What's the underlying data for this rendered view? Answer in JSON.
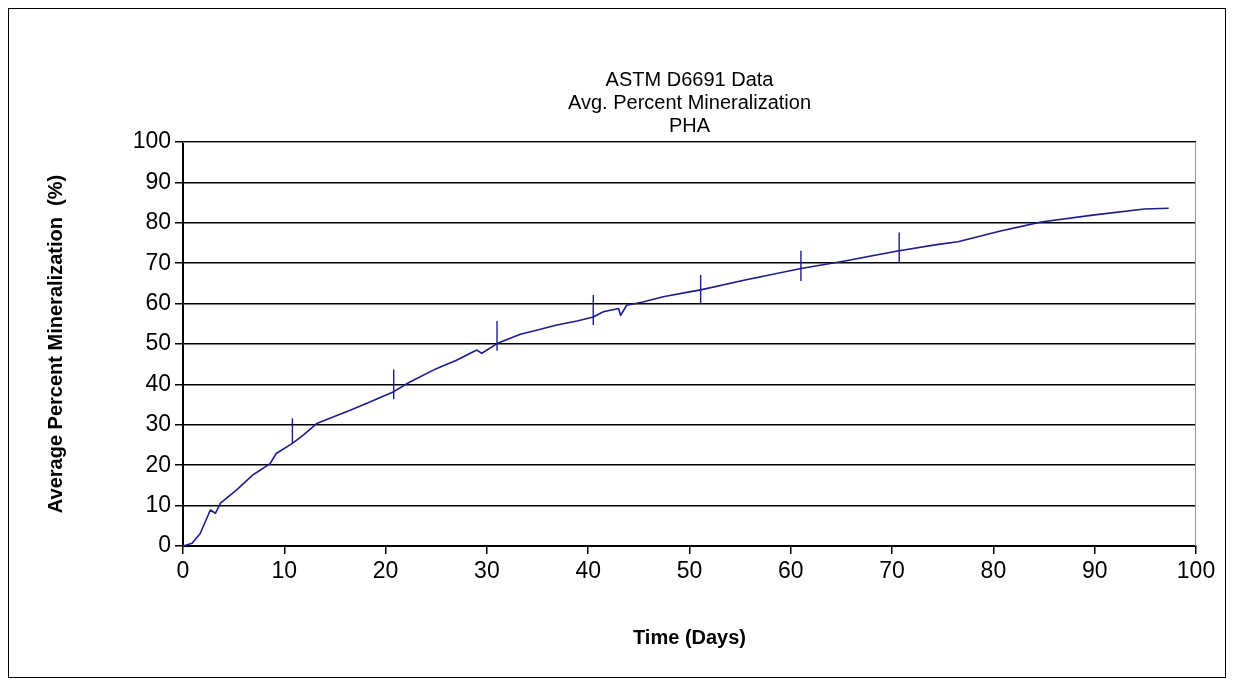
{
  "chart_data": {
    "type": "line",
    "title": "ASTM D6691 Data\nAvg. Percent Mineralization\nPHA",
    "xlabel": "Time (Days)",
    "ylabel": "Average Percent Mineralization  (%)",
    "xlim": [
      0,
      100
    ],
    "xticks": [
      0,
      10,
      20,
      30,
      40,
      50,
      60,
      70,
      80,
      90,
      100
    ],
    "ylim": [
      0,
      100
    ],
    "yticks": [
      0,
      10,
      20,
      30,
      40,
      50,
      60,
      70,
      80,
      90,
      100
    ],
    "grid": "y",
    "legend": false,
    "marker": "none",
    "line_style": "solid",
    "series": [
      {
        "color": "#1c1c8c",
        "x": [
          0,
          0.9,
          1.7,
          2.7,
          3.2,
          3.7,
          5.3,
          6.9,
          8.6,
          9.2,
          10.8,
          11.9,
          13.2,
          14.5,
          16.5,
          18.5,
          20.8,
          22.4,
          25.0,
          27.0,
          29.0,
          29.5,
          31.0,
          33.3,
          34.9,
          36.9,
          38.9,
          40.5,
          41.5,
          43.0,
          43.2,
          43.8,
          45.4,
          47.4,
          50.0,
          51.1,
          55.6,
          61.0,
          65.2,
          70.7,
          74.4,
          76.5,
          80.6,
          84.7,
          89.8,
          94.9,
          97.3
        ],
        "values": [
          0,
          0.7,
          3.1,
          8.9,
          8.1,
          10.6,
          13.9,
          17.6,
          20.4,
          22.9,
          25.4,
          27.5,
          30.3,
          31.6,
          33.6,
          35.7,
          38.2,
          40.6,
          43.9,
          46.0,
          48.5,
          47.7,
          50.1,
          52.4,
          53.4,
          54.7,
          55.7,
          56.7,
          58.0,
          58.8,
          57.1,
          59.6,
          60.4,
          61.7,
          62.9,
          63.4,
          65.9,
          68.7,
          70.5,
          73.1,
          74.6,
          75.3,
          77.9,
          80.2,
          81.9,
          83.4,
          83.6
        ],
        "errors": [
          null,
          null,
          null,
          null,
          null,
          null,
          null,
          null,
          null,
          null,
          [
            25.4,
            31.6
          ],
          null,
          null,
          null,
          null,
          null,
          [
            36.3,
            43.7
          ],
          null,
          null,
          null,
          null,
          null,
          [
            48.3,
            55.7
          ],
          null,
          null,
          null,
          null,
          [
            54.7,
            62.1
          ],
          null,
          null,
          null,
          null,
          null,
          null,
          null,
          [
            60.1,
            67.1
          ],
          null,
          [
            65.6,
            73.1
          ],
          null,
          [
            70.1,
            77.6
          ],
          null,
          null,
          null,
          null,
          null,
          null,
          null
        ]
      }
    ]
  }
}
